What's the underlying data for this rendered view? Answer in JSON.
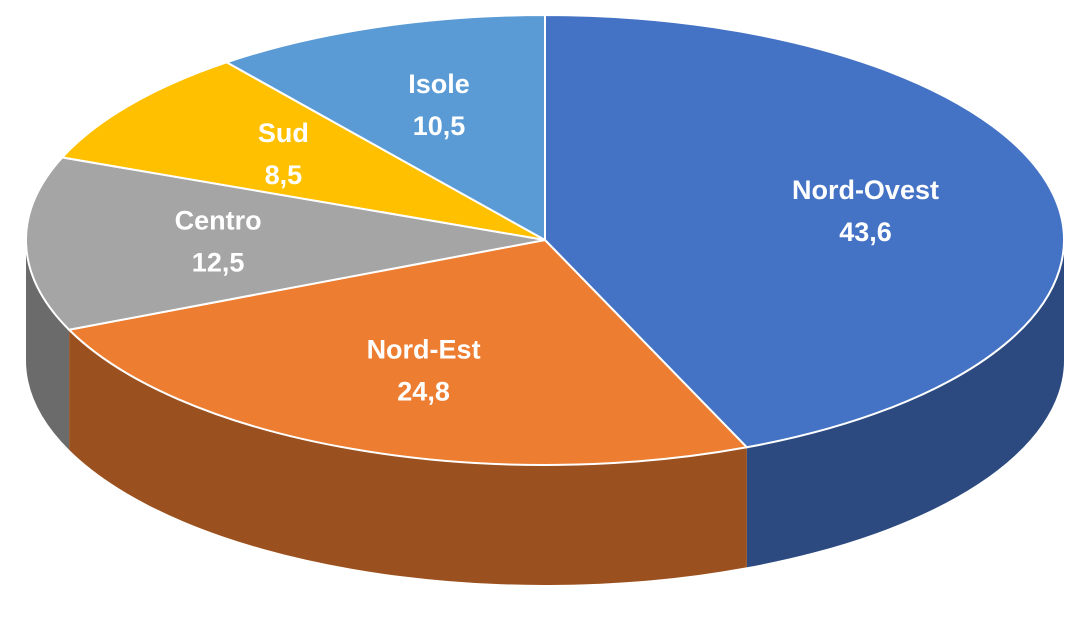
{
  "chart_data": {
    "type": "pie",
    "categories": [
      "Nord-Ovest",
      "Nord-Est",
      "Centro",
      "Sud",
      "Isole"
    ],
    "values": [
      43.6,
      24.8,
      12.5,
      8.5,
      10.5
    ],
    "value_labels": [
      "43,6",
      "24,8",
      "12,5",
      "8,5",
      "10,5"
    ],
    "colors": [
      "#4472c4",
      "#ed7d31",
      "#a5a5a5",
      "#ffc000",
      "#5b9bd5"
    ]
  }
}
